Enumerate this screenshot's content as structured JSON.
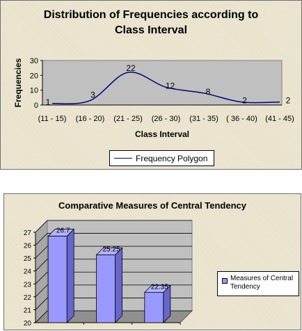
{
  "chart_data": [
    {
      "type": "line",
      "title": "Distribution of Frequencies according to Class Interval",
      "xlabel": "Class Interval",
      "ylabel": "Frequencies",
      "categories": [
        "(11 - 15)",
        "(16 - 20)",
        "(21 - 25)",
        "(26 - 30)",
        "(31 - 35)",
        "( 36 - 40)",
        "(41 - 45)"
      ],
      "series": [
        {
          "name": "Frequency Polygon",
          "values": [
            1,
            3,
            22,
            12,
            8,
            2,
            2
          ],
          "color": "#000080"
        }
      ],
      "ylim": [
        0,
        30
      ],
      "yticks": [
        0,
        10,
        20,
        30
      ],
      "data_labels": true,
      "grid": false,
      "legend": "bottom"
    },
    {
      "type": "bar",
      "title": "Comparative Measures of Central Tendency",
      "categories": [
        "",
        "",
        ""
      ],
      "series": [
        {
          "name": "Measures of Central Tendency",
          "values": [
            26.7,
            25.25,
            22.35
          ],
          "color": "#9999ff"
        }
      ],
      "ylim": [
        20,
        27
      ],
      "yticks": [
        20,
        21,
        22,
        23,
        24,
        25,
        26,
        27
      ],
      "data_labels": true,
      "grid": true,
      "three_d": true,
      "legend": "right"
    }
  ]
}
